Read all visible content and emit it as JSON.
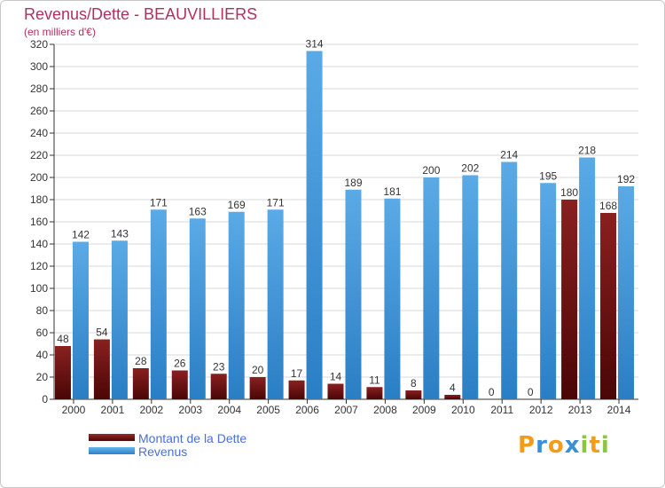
{
  "title": "Revenus/Dette - BEAUVILLIERS",
  "subtitle": "(en milliers d'€)",
  "logo": {
    "text": "Proxiti",
    "letters": [
      {
        "ch": "P",
        "color": "#f39c1a"
      },
      {
        "ch": "r",
        "color": "#3b8fd6"
      },
      {
        "ch": "o",
        "color": "#f39c1a"
      },
      {
        "ch": "x",
        "color": "#3b8fd6"
      },
      {
        "ch": "i",
        "color": "#8cc63f"
      },
      {
        "ch": "t",
        "color": "#f39c1a"
      },
      {
        "ch": "i",
        "color": "#8cc63f"
      }
    ]
  },
  "colors": {
    "dette": "#6e1414",
    "revenus": "#3d96dc",
    "grid": "#d8d8d8",
    "axis": "#333333"
  },
  "chart_data": {
    "type": "bar",
    "title": "Revenus/Dette - BEAUVILLIERS",
    "subtitle": "(en milliers d'€)",
    "xlabel": "",
    "ylabel": "",
    "ylim": [
      0,
      320
    ],
    "yticks": [
      0,
      20,
      40,
      60,
      80,
      100,
      120,
      140,
      160,
      180,
      200,
      220,
      240,
      260,
      280,
      300,
      320
    ],
    "grid": true,
    "legend_position": "bottom-left",
    "categories": [
      "2000",
      "2001",
      "2002",
      "2003",
      "2004",
      "2005",
      "2006",
      "2007",
      "2008",
      "2009",
      "2010",
      "2011",
      "2012",
      "2013",
      "2014"
    ],
    "series": [
      {
        "name": "Montant de la Dette",
        "color": "#6e1414",
        "values": [
          48,
          54,
          28,
          26,
          23,
          20,
          17,
          14,
          11,
          8,
          4,
          0,
          0,
          180,
          168
        ]
      },
      {
        "name": "Revenus",
        "color": "#3d96dc",
        "values": [
          142,
          143,
          171,
          163,
          169,
          171,
          314,
          189,
          181,
          200,
          202,
          214,
          195,
          218,
          192
        ]
      }
    ]
  }
}
